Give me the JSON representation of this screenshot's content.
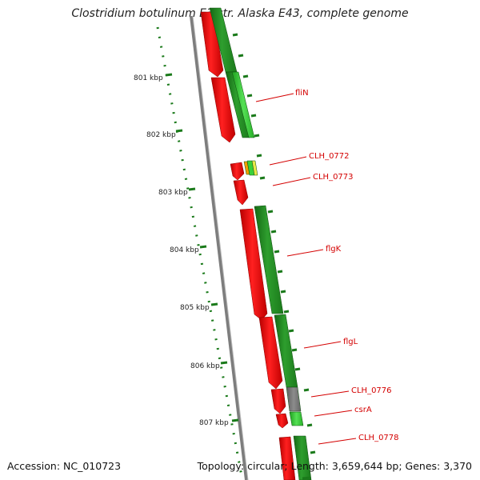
{
  "title": "Clostridium botulinum E3 str. Alaska E43, complete genome",
  "footer": {
    "accession": "Accession: NC_010723",
    "topology": "Topology: circular; Length: 3,659,644 bp; Genes: 3,370"
  },
  "ticks": [
    {
      "label": "801 kbp"
    },
    {
      "label": "802 kbp"
    },
    {
      "label": "803 kbp"
    },
    {
      "label": "804 kbp"
    },
    {
      "label": "805 kbp"
    },
    {
      "label": "806 kbp"
    },
    {
      "label": "807 kbp"
    }
  ],
  "gene_labels": [
    {
      "label": "fliN"
    },
    {
      "label": "CLH_0772"
    },
    {
      "label": "CLH_0773"
    },
    {
      "label": "flgK"
    },
    {
      "label": "flgL"
    },
    {
      "label": "CLH_0776"
    },
    {
      "label": "csrA"
    },
    {
      "label": "CLH_0778"
    }
  ],
  "colors": {
    "forward_strand": "#e00000",
    "reverse_strand": "#1f8a1f",
    "reverse_light": "#39d039",
    "other_feature": "#7a7a7a",
    "label": "#d40000"
  }
}
